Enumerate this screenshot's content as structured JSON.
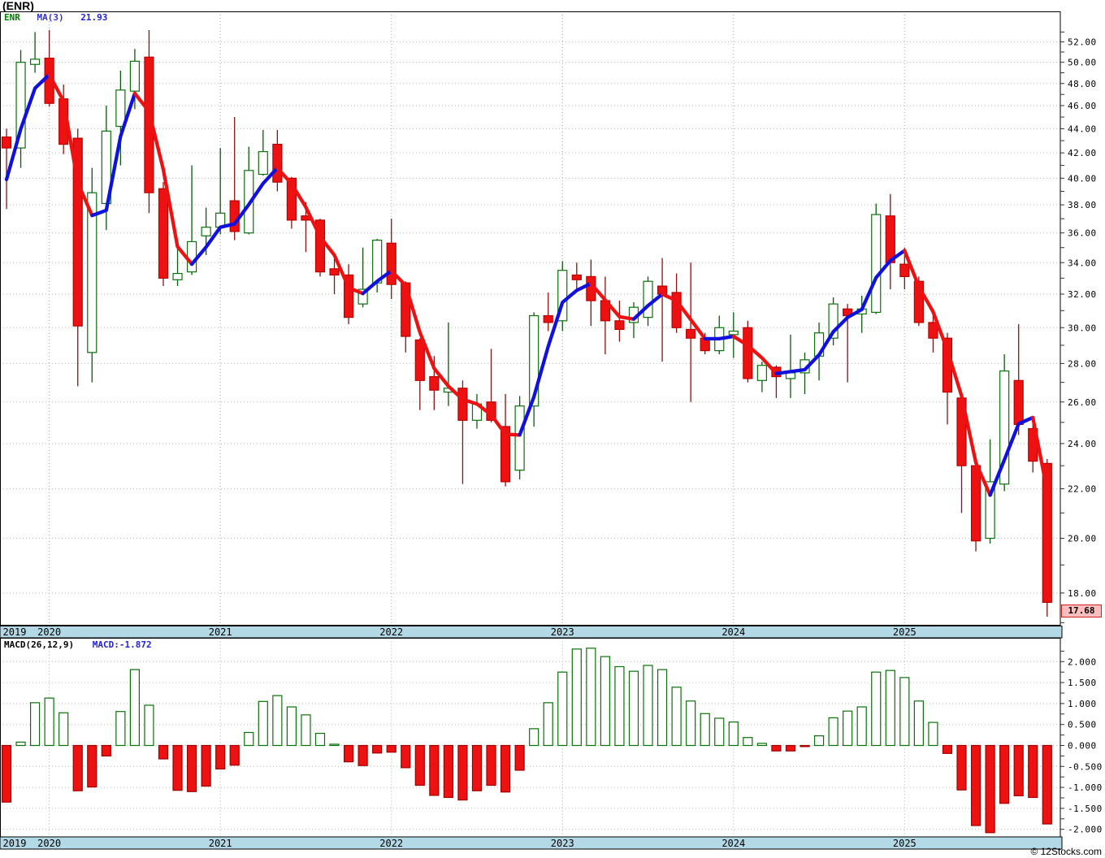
{
  "title": "(ENR)",
  "legend": {
    "symbol": "ENR",
    "ma_label": "MA(3)",
    "ma_value": "21.93"
  },
  "macd_legend": {
    "label": "MACD(26,12,9)",
    "value": "MACD:-1.872"
  },
  "last_price": "17.68",
  "watermark": "© 12Stocks.com",
  "colors": {
    "up_body": "#ffffff",
    "up_border": "#0a720a",
    "up_wick": "#0a5c0a",
    "down_body": "#ee1111",
    "down_border": "#bb0000",
    "down_wick": "#8b1212",
    "ma_up": "#1111dd",
    "ma_down": "#ee1111",
    "grid": "#b9b9b9",
    "band": "#b3d9e6",
    "label_bg": "#ffbdbd",
    "label_border": "#cc2222"
  },
  "x_axis": {
    "years": [
      "2019",
      "2020",
      "2021",
      "2022",
      "2023",
      "2024",
      "2025"
    ]
  },
  "chart_data": [
    {
      "type": "candlestick",
      "title": "ENR monthly price",
      "y_scale": "log",
      "ylim": [
        16.9,
        55.0
      ],
      "ytick_labels": [
        "52.00",
        "50.00",
        "48.00",
        "46.00",
        "44.00",
        "42.00",
        "40.00",
        "38.00",
        "36.00",
        "34.00",
        "32.00",
        "30.00",
        "28.00",
        "26.00",
        "24.00",
        "22.00",
        "20.00",
        "18.00"
      ],
      "overlay": {
        "name": "MA(3)",
        "rule": "blue when rising, red when falling",
        "last_value": 21.93,
        "seed_closes": [
          37.8,
          39.5
        ]
      },
      "months": [
        "2019-10",
        "2019-11",
        "2019-12",
        "2020-01",
        "2020-02",
        "2020-03",
        "2020-04",
        "2020-05",
        "2020-06",
        "2020-07",
        "2020-08",
        "2020-09",
        "2020-10",
        "2020-11",
        "2020-12",
        "2021-01",
        "2021-02",
        "2021-03",
        "2021-04",
        "2021-05",
        "2021-06",
        "2021-07",
        "2021-08",
        "2021-09",
        "2021-10",
        "2021-11",
        "2021-12",
        "2022-01",
        "2022-02",
        "2022-03",
        "2022-04",
        "2022-05",
        "2022-06",
        "2022-07",
        "2022-08",
        "2022-09",
        "2022-10",
        "2022-11",
        "2022-12",
        "2023-01",
        "2023-02",
        "2023-03",
        "2023-04",
        "2023-05",
        "2023-06",
        "2023-07",
        "2023-08",
        "2023-09",
        "2023-10",
        "2023-11",
        "2023-12",
        "2024-01",
        "2024-02",
        "2024-03",
        "2024-04",
        "2024-05",
        "2024-06",
        "2024-07",
        "2024-08",
        "2024-09",
        "2024-10",
        "2024-11",
        "2024-12",
        "2025-01",
        "2025-02",
        "2025-03",
        "2025-04",
        "2025-05",
        "2025-06",
        "2025-07",
        "2025-08",
        "2025-09",
        "2025-10",
        "2025-11"
      ],
      "ohlc": [
        [
          43.3,
          44.0,
          37.7,
          42.4
        ],
        [
          42.4,
          51.2,
          40.8,
          50.0
        ],
        [
          49.8,
          53.0,
          49.0,
          50.3
        ],
        [
          50.4,
          53.2,
          45.9,
          46.2
        ],
        [
          46.6,
          47.9,
          41.9,
          42.7
        ],
        [
          43.2,
          44.0,
          26.8,
          30.1
        ],
        [
          28.6,
          40.8,
          27.0,
          38.9
        ],
        [
          38.1,
          46.0,
          36.2,
          43.8
        ],
        [
          44.2,
          49.2,
          41.0,
          47.4
        ],
        [
          47.3,
          51.3,
          45.7,
          50.1
        ],
        [
          50.5,
          53.2,
          37.4,
          38.9
        ],
        [
          39.2,
          39.7,
          32.5,
          33.0
        ],
        [
          32.9,
          35.0,
          32.5,
          33.3
        ],
        [
          33.4,
          41.0,
          33.2,
          35.4
        ],
        [
          35.8,
          37.8,
          34.5,
          36.4
        ],
        [
          36.4,
          42.4,
          35.9,
          37.4
        ],
        [
          38.3,
          45.0,
          35.5,
          36.1
        ],
        [
          36.0,
          42.5,
          35.9,
          40.6
        ],
        [
          40.3,
          43.9,
          40.2,
          42.1
        ],
        [
          42.7,
          43.9,
          39.0,
          39.7
        ],
        [
          40.0,
          40.1,
          36.3,
          36.9
        ],
        [
          37.2,
          38.2,
          34.7,
          36.9
        ],
        [
          36.9,
          37.0,
          33.1,
          33.4
        ],
        [
          33.6,
          34.3,
          32.0,
          33.2
        ],
        [
          33.2,
          33.9,
          30.2,
          30.6
        ],
        [
          31.4,
          35.0,
          31.2,
          32.3
        ],
        [
          32.7,
          35.6,
          32.1,
          35.5
        ],
        [
          35.3,
          37.0,
          31.7,
          32.6
        ],
        [
          32.7,
          32.8,
          28.6,
          29.5
        ],
        [
          29.3,
          29.4,
          25.6,
          27.1
        ],
        [
          27.3,
          28.4,
          25.6,
          26.6
        ],
        [
          26.5,
          30.3,
          25.8,
          26.7
        ],
        [
          26.7,
          27.1,
          22.2,
          25.1
        ],
        [
          25.1,
          26.4,
          24.7,
          25.9
        ],
        [
          26.0,
          28.8,
          25.0,
          25.1
        ],
        [
          24.8,
          26.4,
          22.1,
          22.3
        ],
        [
          22.8,
          26.3,
          22.4,
          25.8
        ],
        [
          25.8,
          30.9,
          24.8,
          30.7
        ],
        [
          30.7,
          32.1,
          29.8,
          30.3
        ],
        [
          30.4,
          34.1,
          29.8,
          33.5
        ],
        [
          33.2,
          34.0,
          32.1,
          32.9
        ],
        [
          33.1,
          34.2,
          30.1,
          31.6
        ],
        [
          31.6,
          33.1,
          28.5,
          30.4
        ],
        [
          30.4,
          31.6,
          29.2,
          29.9
        ],
        [
          30.3,
          31.5,
          29.4,
          31.2
        ],
        [
          30.6,
          33.1,
          30.1,
          32.8
        ],
        [
          32.5,
          34.3,
          28.1,
          32.0
        ],
        [
          32.1,
          33.3,
          29.7,
          30.0
        ],
        [
          29.9,
          34.0,
          26.0,
          29.4
        ],
        [
          29.4,
          29.7,
          28.5,
          28.7
        ],
        [
          28.7,
          30.7,
          28.5,
          30.0
        ],
        [
          29.6,
          30.9,
          28.3,
          29.8
        ],
        [
          30.0,
          30.4,
          27.0,
          27.2
        ],
        [
          27.1,
          28.1,
          26.5,
          27.9
        ],
        [
          27.8,
          27.9,
          26.2,
          27.3
        ],
        [
          27.2,
          29.6,
          26.2,
          27.5
        ],
        [
          27.5,
          28.6,
          26.4,
          28.2
        ],
        [
          28.4,
          30.3,
          27.1,
          29.7
        ],
        [
          29.4,
          31.8,
          29.0,
          31.4
        ],
        [
          31.1,
          31.4,
          27.0,
          30.7
        ],
        [
          30.8,
          31.9,
          29.7,
          31.1
        ],
        [
          30.9,
          38.1,
          30.8,
          37.3
        ],
        [
          37.2,
          38.8,
          32.3,
          34.0
        ],
        [
          33.9,
          35.0,
          32.3,
          33.1
        ],
        [
          32.8,
          33.1,
          30.1,
          30.3
        ],
        [
          30.3,
          30.8,
          28.6,
          29.4
        ],
        [
          29.4,
          29.7,
          24.9,
          26.5
        ],
        [
          26.2,
          26.4,
          21.0,
          23.0
        ],
        [
          23.0,
          23.3,
          19.5,
          19.9
        ],
        [
          20.0,
          24.2,
          19.8,
          22.3
        ],
        [
          22.2,
          28.5,
          21.9,
          27.6
        ],
        [
          27.1,
          30.2,
          24.4,
          24.9
        ],
        [
          24.7,
          24.9,
          22.7,
          23.2
        ],
        [
          23.1,
          23.3,
          17.2,
          17.68
        ]
      ],
      "last_close": 17.68
    },
    {
      "type": "bar",
      "title": "MACD(26,12,9)",
      "ylim": [
        -2.25,
        2.35
      ],
      "ytick_labels": [
        "2.000",
        "1.500",
        "1.000",
        "0.500",
        "0.000",
        "-0.500",
        "-1.000",
        "-1.500",
        "-2.000"
      ],
      "last_value": -1.872,
      "values": [
        -1.35,
        0.08,
        1.02,
        1.13,
        0.78,
        -1.08,
        -0.99,
        -0.25,
        0.81,
        1.81,
        0.96,
        -0.32,
        -1.07,
        -1.1,
        -0.97,
        -0.56,
        -0.47,
        0.31,
        1.05,
        1.19,
        0.92,
        0.73,
        0.29,
        0.03,
        -0.39,
        -0.48,
        -0.18,
        -0.16,
        -0.53,
        -0.95,
        -1.19,
        -1.24,
        -1.3,
        -1.08,
        -0.95,
        -1.11,
        -0.59,
        0.4,
        1.02,
        1.75,
        2.3,
        2.32,
        2.12,
        1.88,
        1.77,
        1.91,
        1.81,
        1.39,
        1.06,
        0.76,
        0.65,
        0.56,
        0.19,
        0.05,
        -0.13,
        -0.13,
        -0.02,
        0.23,
        0.66,
        0.82,
        0.92,
        1.75,
        1.79,
        1.62,
        1.06,
        0.55,
        -0.19,
        -1.06,
        -1.91,
        -2.08,
        -1.38,
        -1.2,
        -1.24,
        -1.872
      ]
    }
  ]
}
